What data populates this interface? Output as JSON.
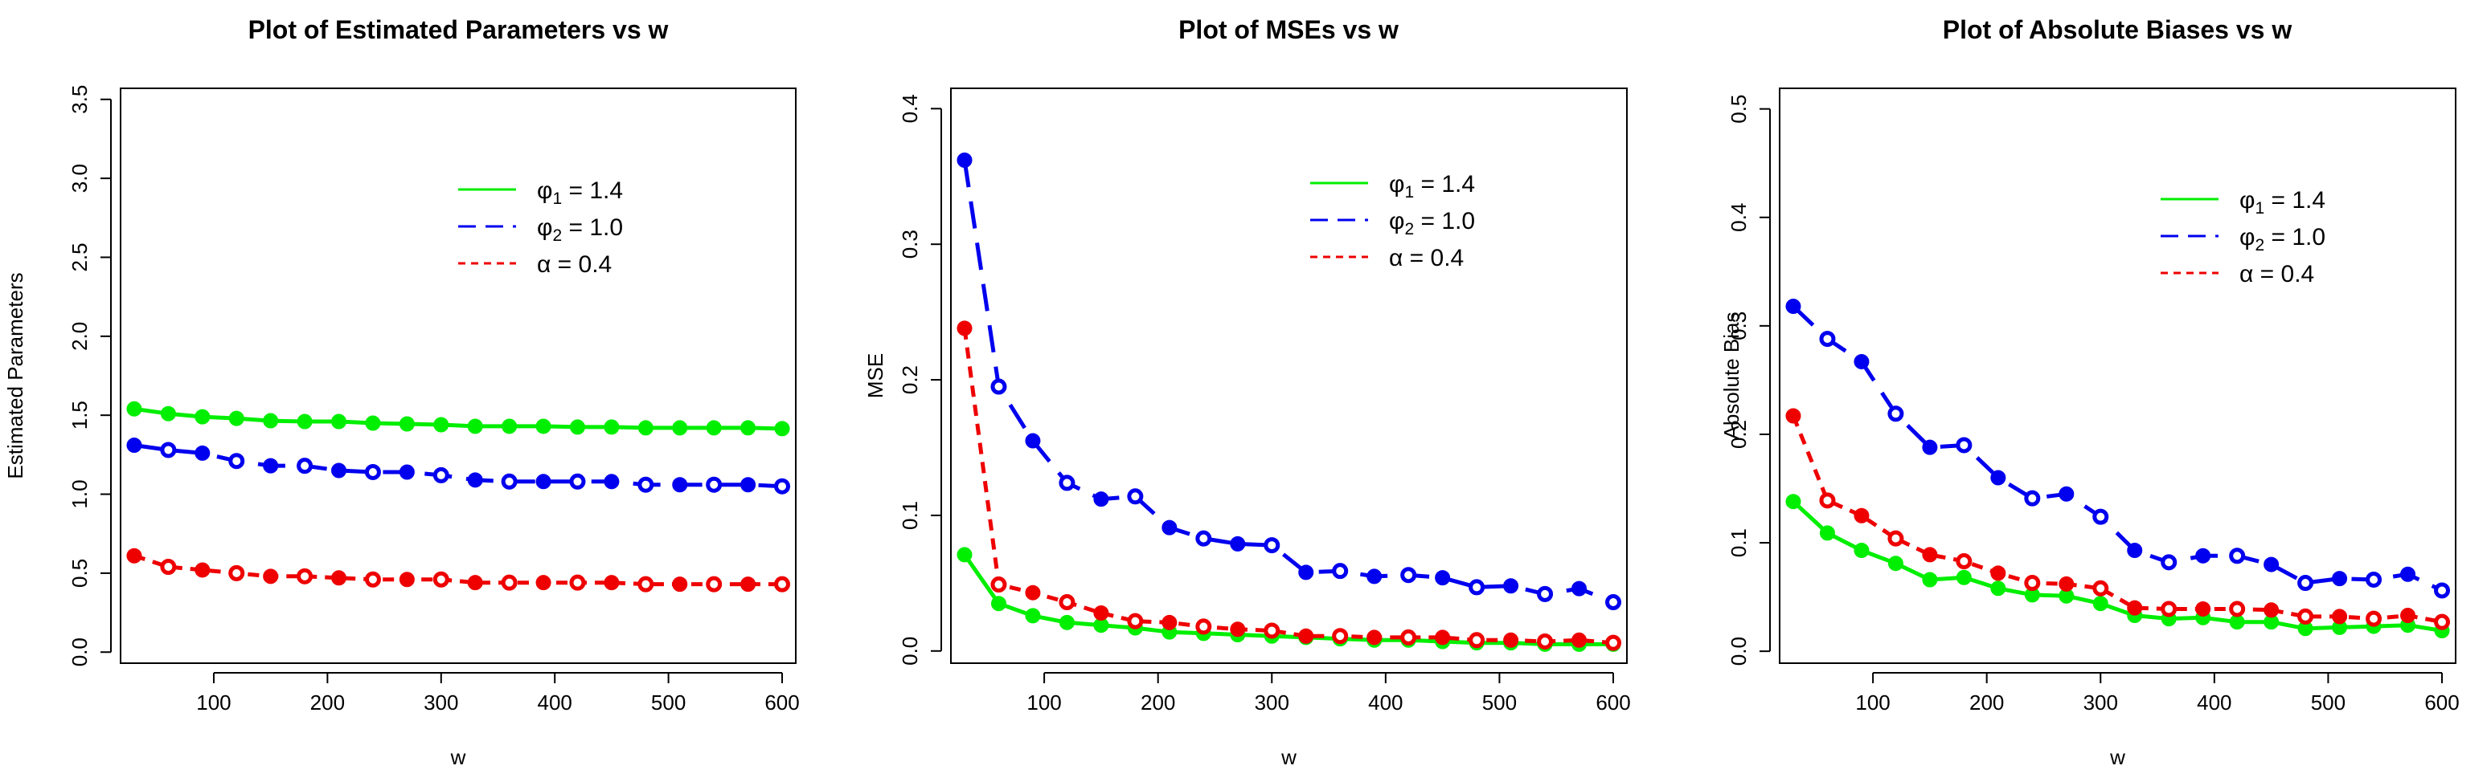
{
  "chart_data": [
    {
      "type": "line",
      "title": "Plot of Estimated Parameters vs w",
      "xlabel": "w",
      "ylabel": "Estimated Parameters",
      "xlim": [
        18,
        612
      ],
      "ylim": [
        -0.07,
        3.57
      ],
      "xticks": [
        100,
        200,
        300,
        400,
        500,
        600
      ],
      "xtick_labels": [
        "100",
        "200",
        "300",
        "400",
        "500",
        "600"
      ],
      "yticks": [
        0.0,
        0.5,
        1.0,
        1.5,
        2.0,
        2.5,
        3.0,
        3.5
      ],
      "ytick_labels": [
        "0.0",
        "0.5",
        "1.0",
        "1.5",
        "2.0",
        "2.5",
        "3.0",
        "3.5"
      ],
      "legend_position": "top-right",
      "x": [
        30,
        60,
        90,
        120,
        150,
        180,
        210,
        240,
        270,
        300,
        330,
        360,
        390,
        420,
        450,
        480,
        510,
        540,
        570,
        600
      ],
      "series": [
        {
          "name": "phi1",
          "legend_symbol": "φ",
          "legend_sub": "1",
          "legend_rest": " = 1.4",
          "color": "#00ee00",
          "dash": "solid",
          "values": [
            1.54,
            1.51,
            1.49,
            1.48,
            1.465,
            1.46,
            1.46,
            1.45,
            1.445,
            1.44,
            1.43,
            1.43,
            1.43,
            1.425,
            1.425,
            1.42,
            1.42,
            1.42,
            1.42,
            1.415
          ]
        },
        {
          "name": "phi2",
          "legend_symbol": "φ",
          "legend_sub": "2",
          "legend_rest": " = 1.0",
          "color": "#0000ee",
          "dash": "long",
          "values": [
            1.31,
            1.28,
            1.26,
            1.21,
            1.18,
            1.18,
            1.15,
            1.14,
            1.14,
            1.12,
            1.09,
            1.08,
            1.08,
            1.08,
            1.08,
            1.06,
            1.06,
            1.06,
            1.06,
            1.05
          ]
        },
        {
          "name": "alpha",
          "legend_symbol": "α",
          "legend_sub": "",
          "legend_rest": " = 0.4",
          "color": "#ee0000",
          "dash": "short",
          "values": [
            0.61,
            0.54,
            0.52,
            0.5,
            0.48,
            0.48,
            0.47,
            0.46,
            0.46,
            0.46,
            0.44,
            0.44,
            0.44,
            0.44,
            0.44,
            0.43,
            0.43,
            0.43,
            0.43,
            0.43
          ]
        }
      ]
    },
    {
      "type": "line",
      "title": "Plot of MSEs vs w",
      "xlabel": "w",
      "ylabel": "MSE",
      "xlim": [
        18,
        612
      ],
      "ylim": [
        -0.009,
        0.415
      ],
      "xticks": [
        100,
        200,
        300,
        400,
        500,
        600
      ],
      "xtick_labels": [
        "100",
        "200",
        "300",
        "400",
        "500",
        "600"
      ],
      "yticks": [
        0.0,
        0.1,
        0.2,
        0.3,
        0.4
      ],
      "ytick_labels": [
        "0.0",
        "0.1",
        "0.2",
        "0.3",
        "0.4"
      ],
      "legend_position": "top-right",
      "x": [
        30,
        60,
        90,
        120,
        150,
        180,
        210,
        240,
        270,
        300,
        330,
        360,
        390,
        420,
        450,
        480,
        510,
        540,
        570,
        600
      ],
      "series": [
        {
          "name": "phi1",
          "legend_symbol": "φ",
          "legend_sub": "1",
          "legend_rest": " = 1.4",
          "color": "#00ee00",
          "dash": "solid",
          "values": [
            0.071,
            0.035,
            0.026,
            0.021,
            0.019,
            0.017,
            0.014,
            0.013,
            0.012,
            0.011,
            0.01,
            0.009,
            0.008,
            0.008,
            0.007,
            0.006,
            0.006,
            0.005,
            0.005,
            0.005
          ]
        },
        {
          "name": "phi2",
          "legend_symbol": "φ",
          "legend_sub": "2",
          "legend_rest": " = 1.0",
          "color": "#0000ee",
          "dash": "long",
          "values": [
            0.362,
            0.195,
            0.155,
            0.124,
            0.112,
            0.114,
            0.091,
            0.083,
            0.079,
            0.078,
            0.058,
            0.059,
            0.055,
            0.056,
            0.054,
            0.047,
            0.048,
            0.042,
            0.046,
            0.036
          ]
        },
        {
          "name": "alpha",
          "legend_symbol": "α",
          "legend_sub": "",
          "legend_rest": " = 0.4",
          "color": "#ee0000",
          "dash": "short",
          "values": [
            0.238,
            0.049,
            0.043,
            0.036,
            0.028,
            0.022,
            0.021,
            0.018,
            0.016,
            0.015,
            0.011,
            0.011,
            0.01,
            0.01,
            0.01,
            0.008,
            0.008,
            0.007,
            0.008,
            0.006
          ]
        }
      ]
    },
    {
      "type": "line",
      "title": "Plot of Absolute Biases vs w",
      "xlabel": "w",
      "ylabel": "Absolute Bias",
      "xlim": [
        18,
        612
      ],
      "ylim": [
        -0.011,
        0.519
      ],
      "xticks": [
        100,
        200,
        300,
        400,
        500,
        600
      ],
      "xtick_labels": [
        "100",
        "200",
        "300",
        "400",
        "500",
        "600"
      ],
      "yticks": [
        0.0,
        0.1,
        0.2,
        0.3,
        0.4,
        0.5
      ],
      "ytick_labels": [
        "0.0",
        "0.1",
        "0.2",
        "0.3",
        "0.4",
        "0.5"
      ],
      "legend_position": "top-right",
      "x": [
        30,
        60,
        90,
        120,
        150,
        180,
        210,
        240,
        270,
        300,
        330,
        360,
        390,
        420,
        450,
        480,
        510,
        540,
        570,
        600
      ],
      "series": [
        {
          "name": "phi1",
          "legend_symbol": "φ",
          "legend_sub": "1",
          "legend_rest": " = 1.4",
          "color": "#00ee00",
          "dash": "solid",
          "values": [
            0.138,
            0.109,
            0.093,
            0.081,
            0.066,
            0.068,
            0.058,
            0.052,
            0.051,
            0.044,
            0.033,
            0.03,
            0.031,
            0.027,
            0.027,
            0.021,
            0.022,
            0.023,
            0.024,
            0.019
          ]
        },
        {
          "name": "phi2",
          "legend_symbol": "φ",
          "legend_sub": "2",
          "legend_rest": " = 1.0",
          "color": "#0000ee",
          "dash": "long",
          "values": [
            0.318,
            0.288,
            0.267,
            0.219,
            0.188,
            0.19,
            0.16,
            0.141,
            0.145,
            0.124,
            0.093,
            0.082,
            0.088,
            0.088,
            0.08,
            0.063,
            0.067,
            0.066,
            0.071,
            0.056
          ]
        },
        {
          "name": "alpha",
          "legend_symbol": "α",
          "legend_sub": "",
          "legend_rest": " = 0.4",
          "color": "#ee0000",
          "dash": "short",
          "values": [
            0.217,
            0.139,
            0.125,
            0.104,
            0.089,
            0.083,
            0.072,
            0.063,
            0.062,
            0.058,
            0.04,
            0.039,
            0.039,
            0.039,
            0.038,
            0.032,
            0.032,
            0.03,
            0.033,
            0.027
          ]
        }
      ]
    }
  ]
}
